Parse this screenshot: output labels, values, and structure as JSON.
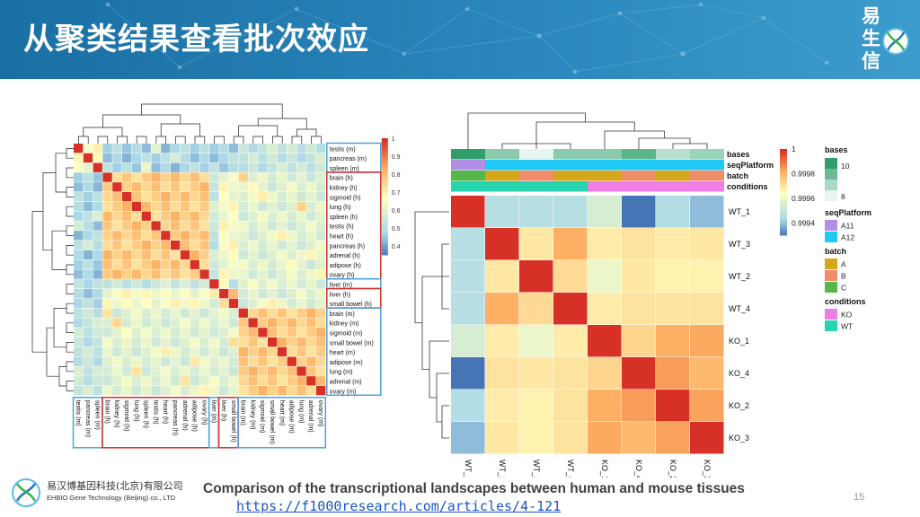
{
  "slide": {
    "title": "从聚类结果查看批次效应",
    "logo_chars": [
      "易",
      "生",
      "信"
    ],
    "page_number": "15",
    "caption": "Comparison of the transcriptional landscapes between human and mouse tissues",
    "link": "https://f1000research.com/articles/4-121",
    "company_cn": "易汉博基因科技(北京)有限公司",
    "company_en": "EHBIO Gene Technology (Beijing) co., LTD",
    "colors": {
      "header": "#1f78ad",
      "heat_high": "#d73027",
      "heat_mid": "#fee090",
      "heat_low": "#4575b4",
      "box_red": "#d62d2d",
      "box_blue": "#4aa3d8"
    }
  },
  "chart_data": [
    {
      "type": "heatmap",
      "title": "",
      "labels": [
        "testis (m)",
        "pancreas (m)",
        "spleen (m)",
        "brain (h)",
        "kidney (h)",
        "sigmoid (h)",
        "lung (h)",
        "spleen (h)",
        "testis (h)",
        "heart (h)",
        "pancreas (h)",
        "adrenal (h)",
        "adipose (h)",
        "ovary (h)",
        "liver (m)",
        "liver (h)",
        "small bowel (h)",
        "brain (m)",
        "kidney (m)",
        "sigmoid (m)",
        "small bowel (m)",
        "heart (m)",
        "adipose (m)",
        "lung (m)",
        "adrenal (m)",
        "ovary (m)"
      ],
      "colorbar_ticks": [
        "1",
        "0.9",
        "0.8",
        "0.7",
        "0.6",
        "0.5",
        "0.4"
      ],
      "colorbar_range": [
        0.35,
        1
      ],
      "groups": [
        {
          "color": "blue",
          "members": [
            "testis (m)",
            "pancreas (m)",
            "spleen (m)"
          ]
        },
        {
          "color": "red",
          "members": [
            "brain (h)",
            "kidney (h)",
            "sigmoid (h)",
            "lung (h)",
            "spleen (h)",
            "testis (h)",
            "heart (h)",
            "pancreas (h)",
            "adrenal (h)",
            "adipose (h)",
            "ovary (h)"
          ]
        },
        {
          "color": "blue",
          "members": [
            "liver (m)"
          ]
        },
        {
          "color": "red",
          "members": [
            "liver (h)",
            "small bowel (h)"
          ]
        },
        {
          "color": "blue",
          "members": [
            "brain (m)",
            "kidney (m)",
            "sigmoid (m)",
            "small bowel (m)",
            "heart (m)",
            "adipose (m)",
            "lung (m)",
            "adrenal (m)",
            "ovary (m)"
          ]
        }
      ]
    },
    {
      "type": "heatmap",
      "title": "",
      "rows": [
        "WT_1",
        "WT_3",
        "WT_2",
        "WT_4",
        "KO_1",
        "KO_4",
        "KO_2",
        "KO_3"
      ],
      "cols": [
        "WT_1",
        "WT_3",
        "WT_2",
        "WT_4",
        "KO_1",
        "KO_4",
        "KO_2",
        "KO_3"
      ],
      "values": [
        [
          1,
          0.99947,
          0.99947,
          0.99947,
          0.99955,
          0.99928,
          0.99946,
          0.9994
        ],
        [
          0.99947,
          1,
          0.9997,
          0.99982,
          0.99969,
          0.99971,
          0.99969,
          0.9997
        ],
        [
          0.99947,
          0.9997,
          1,
          0.99973,
          0.9996,
          0.9997,
          0.99968,
          0.99968
        ],
        [
          0.99947,
          0.99982,
          0.99973,
          1,
          0.99969,
          0.99971,
          0.99971,
          0.99971
        ],
        [
          0.99955,
          0.99969,
          0.9996,
          0.99969,
          1,
          0.99974,
          0.99982,
          0.99983
        ],
        [
          0.99928,
          0.99971,
          0.9997,
          0.99971,
          0.99974,
          1,
          0.99985,
          0.9998
        ],
        [
          0.99946,
          0.99969,
          0.99968,
          0.99971,
          0.99982,
          0.99985,
          1,
          0.99984
        ],
        [
          0.9994,
          0.9997,
          0.99968,
          0.99971,
          0.99983,
          0.9998,
          0.99984,
          1
        ]
      ],
      "colorbar_ticks": [
        "1",
        "0.9998",
        "0.9996",
        "0.9994"
      ],
      "colorbar_range": [
        0.9993,
        1
      ],
      "annotation_rows": [
        "bases",
        "seqPlatform",
        "batch",
        "conditions"
      ],
      "annotations": {
        "bases": [
          10,
          9,
          8,
          9,
          9,
          9.5,
          8.5,
          8.8
        ],
        "seqPlatform": [
          "A11",
          "A12",
          "A12",
          "A12",
          "A12",
          "A12",
          "A12",
          "A12"
        ],
        "batch": [
          "C",
          "A",
          "B",
          "A",
          "A",
          "B",
          "A",
          "B"
        ],
        "conditions": [
          "WT",
          "WT",
          "WT",
          "WT",
          "KO",
          "KO",
          "KO",
          "KO"
        ]
      },
      "legend": {
        "bases": {
          "title": "bases",
          "ticks": [
            "10",
            "8"
          ]
        },
        "seqPlatform": {
          "title": "seqPlatform",
          "items": [
            {
              "label": "A11",
              "color": "#b38ee6"
            },
            {
              "label": "A12",
              "color": "#1fc8f5"
            }
          ]
        },
        "batch": {
          "title": "batch",
          "items": [
            {
              "label": "A",
              "color": "#d6a61b"
            },
            {
              "label": "B",
              "color": "#f08c6a"
            },
            {
              "label": "C",
              "color": "#52b84a"
            }
          ]
        },
        "conditions": {
          "title": "conditions",
          "items": [
            {
              "label": "KO",
              "color": "#ee7ee6"
            },
            {
              "label": "WT",
              "color": "#27d4b0"
            }
          ]
        }
      }
    }
  ]
}
